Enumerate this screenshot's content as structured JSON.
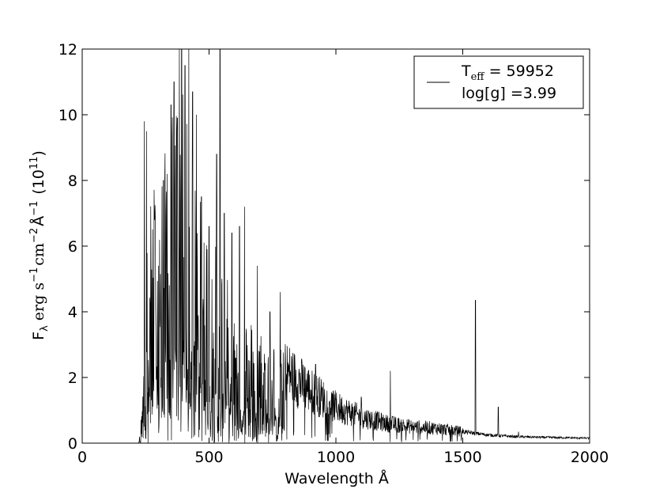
{
  "chart_data": {
    "type": "line",
    "title": "",
    "xlabel": "Wavelength Å",
    "ylabel": {
      "main": "F",
      "sub": "λ",
      "units_part1": "erg s",
      "exp1": "−1",
      "units_part2": "cm",
      "exp2": "−2",
      "units_part3": "Å",
      "exp3": "−1",
      "scale_open": "(10",
      "scale_exp": "11",
      "scale_close": ")"
    },
    "xlim": [
      0,
      2000
    ],
    "ylim": [
      0,
      12
    ],
    "xticks": [
      0,
      500,
      1000,
      1500,
      2000
    ],
    "xtick_labels": [
      "0",
      "500",
      "1000",
      "1500",
      "2000"
    ],
    "yticks": [
      0,
      2,
      4,
      6,
      8,
      10,
      12
    ],
    "ytick_labels": [
      "0",
      "2",
      "4",
      "6",
      "8",
      "10",
      "12"
    ],
    "grid": false,
    "legend": {
      "placement": "top-right",
      "line1_main": "T",
      "line1_sub": "eff",
      "line1_value": " = 59952",
      "line2": "log[g] =3.99"
    },
    "line_color": "#000000",
    "series": [
      {
        "envelope": [
          [
            220,
            0.0
          ],
          [
            230,
            0.3
          ],
          [
            240,
            2.5
          ],
          [
            250,
            4.0
          ],
          [
            260,
            5.5
          ],
          [
            280,
            6.5
          ],
          [
            300,
            6.8
          ],
          [
            320,
            7.0
          ],
          [
            340,
            7.5
          ],
          [
            360,
            8.5
          ],
          [
            380,
            8.8
          ],
          [
            400,
            8.5
          ],
          [
            420,
            7.5
          ],
          [
            440,
            6.8
          ],
          [
            460,
            6.2
          ],
          [
            480,
            5.8
          ],
          [
            500,
            5.4
          ],
          [
            520,
            5.0
          ],
          [
            540,
            4.6
          ],
          [
            560,
            4.2
          ],
          [
            580,
            3.9
          ],
          [
            600,
            3.6
          ],
          [
            650,
            3.2
          ],
          [
            700,
            2.9
          ],
          [
            750,
            2.6
          ],
          [
            800,
            2.2
          ],
          [
            850,
            1.9
          ],
          [
            900,
            1.6
          ],
          [
            950,
            1.35
          ],
          [
            1000,
            1.1
          ],
          [
            1050,
            0.95
          ],
          [
            1100,
            0.8
          ],
          [
            1150,
            0.7
          ],
          [
            1200,
            0.6
          ],
          [
            1250,
            0.55
          ],
          [
            1300,
            0.5
          ],
          [
            1400,
            0.45
          ],
          [
            1500,
            0.35
          ],
          [
            1600,
            0.25
          ],
          [
            1700,
            0.2
          ],
          [
            1800,
            0.18
          ],
          [
            2000,
            0.15
          ]
        ],
        "lines": [
          [
            245,
            9.8
          ],
          [
            253,
            9.5
          ],
          [
            270,
            6.9
          ],
          [
            285,
            6.8
          ],
          [
            300,
            5.4
          ],
          [
            320,
            8.0
          ],
          [
            335,
            8.2
          ],
          [
            350,
            10.3
          ],
          [
            362,
            11.0
          ],
          [
            375,
            9.9
          ],
          [
            383,
            12.0
          ],
          [
            392,
            12.0
          ],
          [
            405,
            11.5
          ],
          [
            420,
            12.0
          ],
          [
            435,
            10.7
          ],
          [
            450,
            10.0
          ],
          [
            470,
            7.5
          ],
          [
            500,
            6.6
          ],
          [
            530,
            8.8
          ],
          [
            543,
            12.0
          ],
          [
            560,
            7.0
          ],
          [
            590,
            6.4
          ],
          [
            620,
            6.6
          ],
          [
            640,
            7.2
          ],
          [
            690,
            5.4
          ],
          [
            740,
            4.0
          ],
          [
            780,
            4.6
          ],
          [
            800,
            2.5
          ],
          [
            920,
            2.4
          ],
          [
            1100,
            1.4
          ],
          [
            1215,
            2.2
          ],
          [
            1550,
            4.35
          ],
          [
            1640,
            1.1
          ],
          [
            1720,
            0.35
          ]
        ]
      }
    ]
  }
}
